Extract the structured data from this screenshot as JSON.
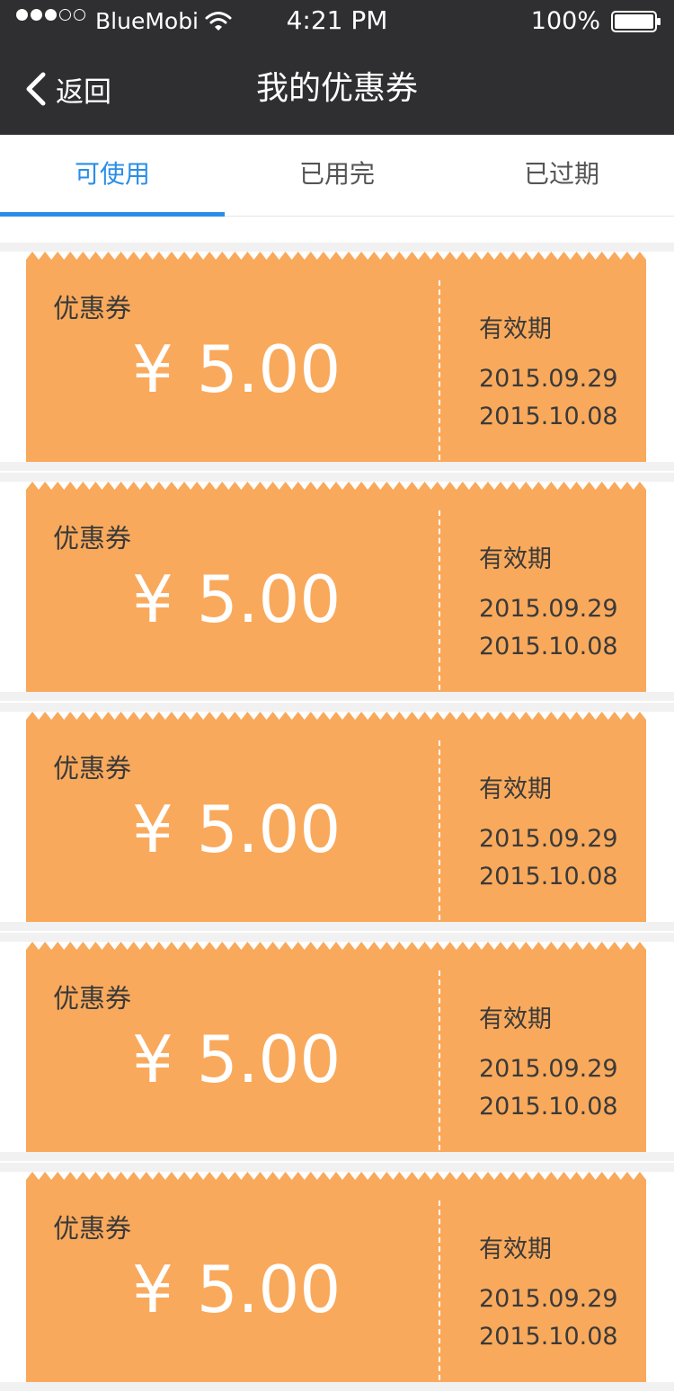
{
  "status_bar": {
    "carrier": "BlueMobi",
    "time": "4:21 PM",
    "battery_percent": "100%",
    "signal_bars_filled": 3,
    "signal_bars_total": 5
  },
  "nav": {
    "back_label": "返回",
    "title": "我的优惠券"
  },
  "tabs": [
    {
      "label": "可使用",
      "active": true
    },
    {
      "label": "已用完",
      "active": false
    },
    {
      "label": "已过期",
      "active": false
    }
  ],
  "coupons": [
    {
      "label": "优惠券",
      "currency": "¥",
      "amount": "5.00",
      "validity_label": "有效期",
      "start_date": "2015.09.29",
      "end_date": "2015.10.08"
    },
    {
      "label": "优惠券",
      "currency": "¥",
      "amount": "5.00",
      "validity_label": "有效期",
      "start_date": "2015.09.29",
      "end_date": "2015.10.08"
    },
    {
      "label": "优惠券",
      "currency": "¥",
      "amount": "5.00",
      "validity_label": "有效期",
      "start_date": "2015.09.29",
      "end_date": "2015.10.08"
    },
    {
      "label": "优惠券",
      "currency": "¥",
      "amount": "5.00",
      "validity_label": "有效期",
      "start_date": "2015.09.29",
      "end_date": "2015.10.08"
    },
    {
      "label": "优惠券",
      "currency": "¥",
      "amount": "5.00",
      "validity_label": "有效期",
      "start_date": "2015.09.29",
      "end_date": "2015.10.08"
    }
  ],
  "colors": {
    "nav_background": "#2f2f31",
    "tab_active": "#2a8ee8",
    "coupon_fill": "#f9a95b",
    "coupon_text": "#3a3a3a",
    "amount_text": "#ffffff"
  },
  "icons": {
    "back": "chevron-left-icon",
    "wifi": "wifi-icon",
    "battery": "battery-icon"
  }
}
